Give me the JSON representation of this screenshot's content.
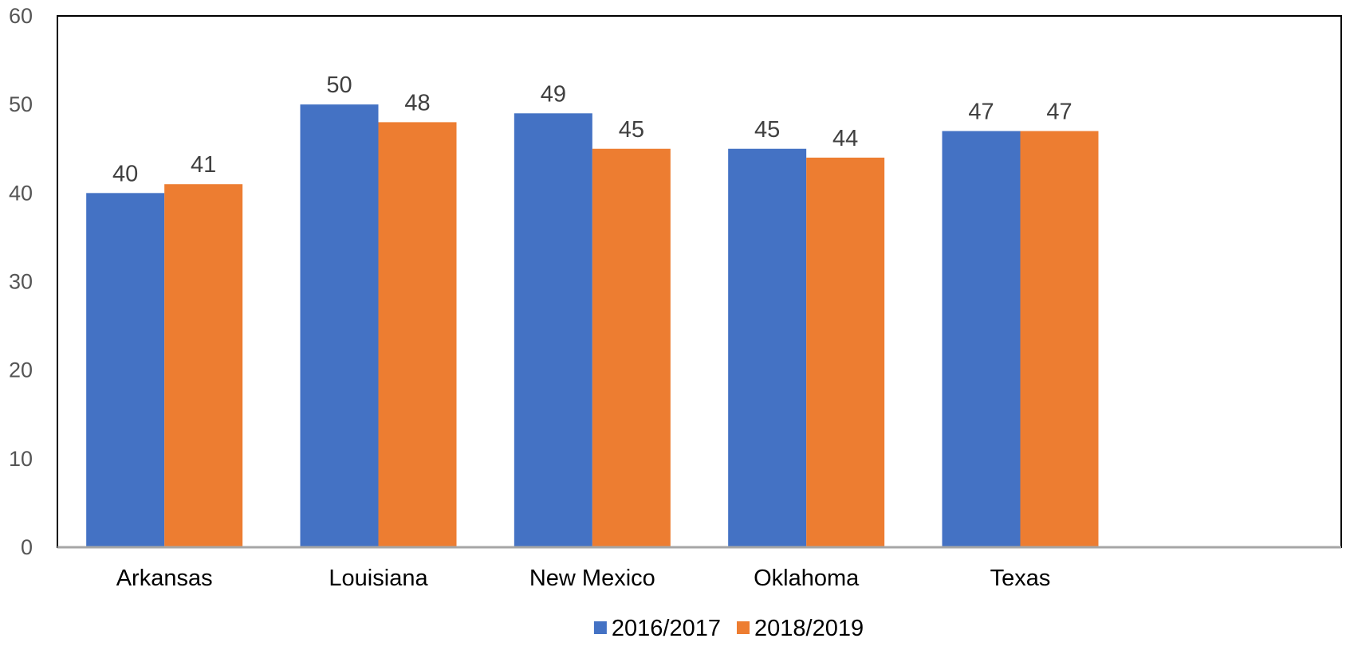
{
  "chart_data": {
    "type": "bar",
    "categories": [
      "Arkansas",
      "Louisiana",
      "New Mexico",
      "Oklahoma",
      "Texas",
      ""
    ],
    "series": [
      {
        "name": "2016/2017",
        "values": [
          40,
          50,
          49,
          45,
          47,
          null
        ],
        "color": "#4472C4"
      },
      {
        "name": "2018/2019",
        "values": [
          41,
          48,
          45,
          44,
          47,
          null
        ],
        "color": "#ED7D31"
      }
    ],
    "title": "",
    "xlabel": "",
    "ylabel": "",
    "ylim": [
      0,
      60
    ],
    "yticks": [
      0,
      10,
      20,
      30,
      40,
      50,
      60
    ],
    "grid": false,
    "legend_position": "bottom",
    "data_labels": true
  }
}
